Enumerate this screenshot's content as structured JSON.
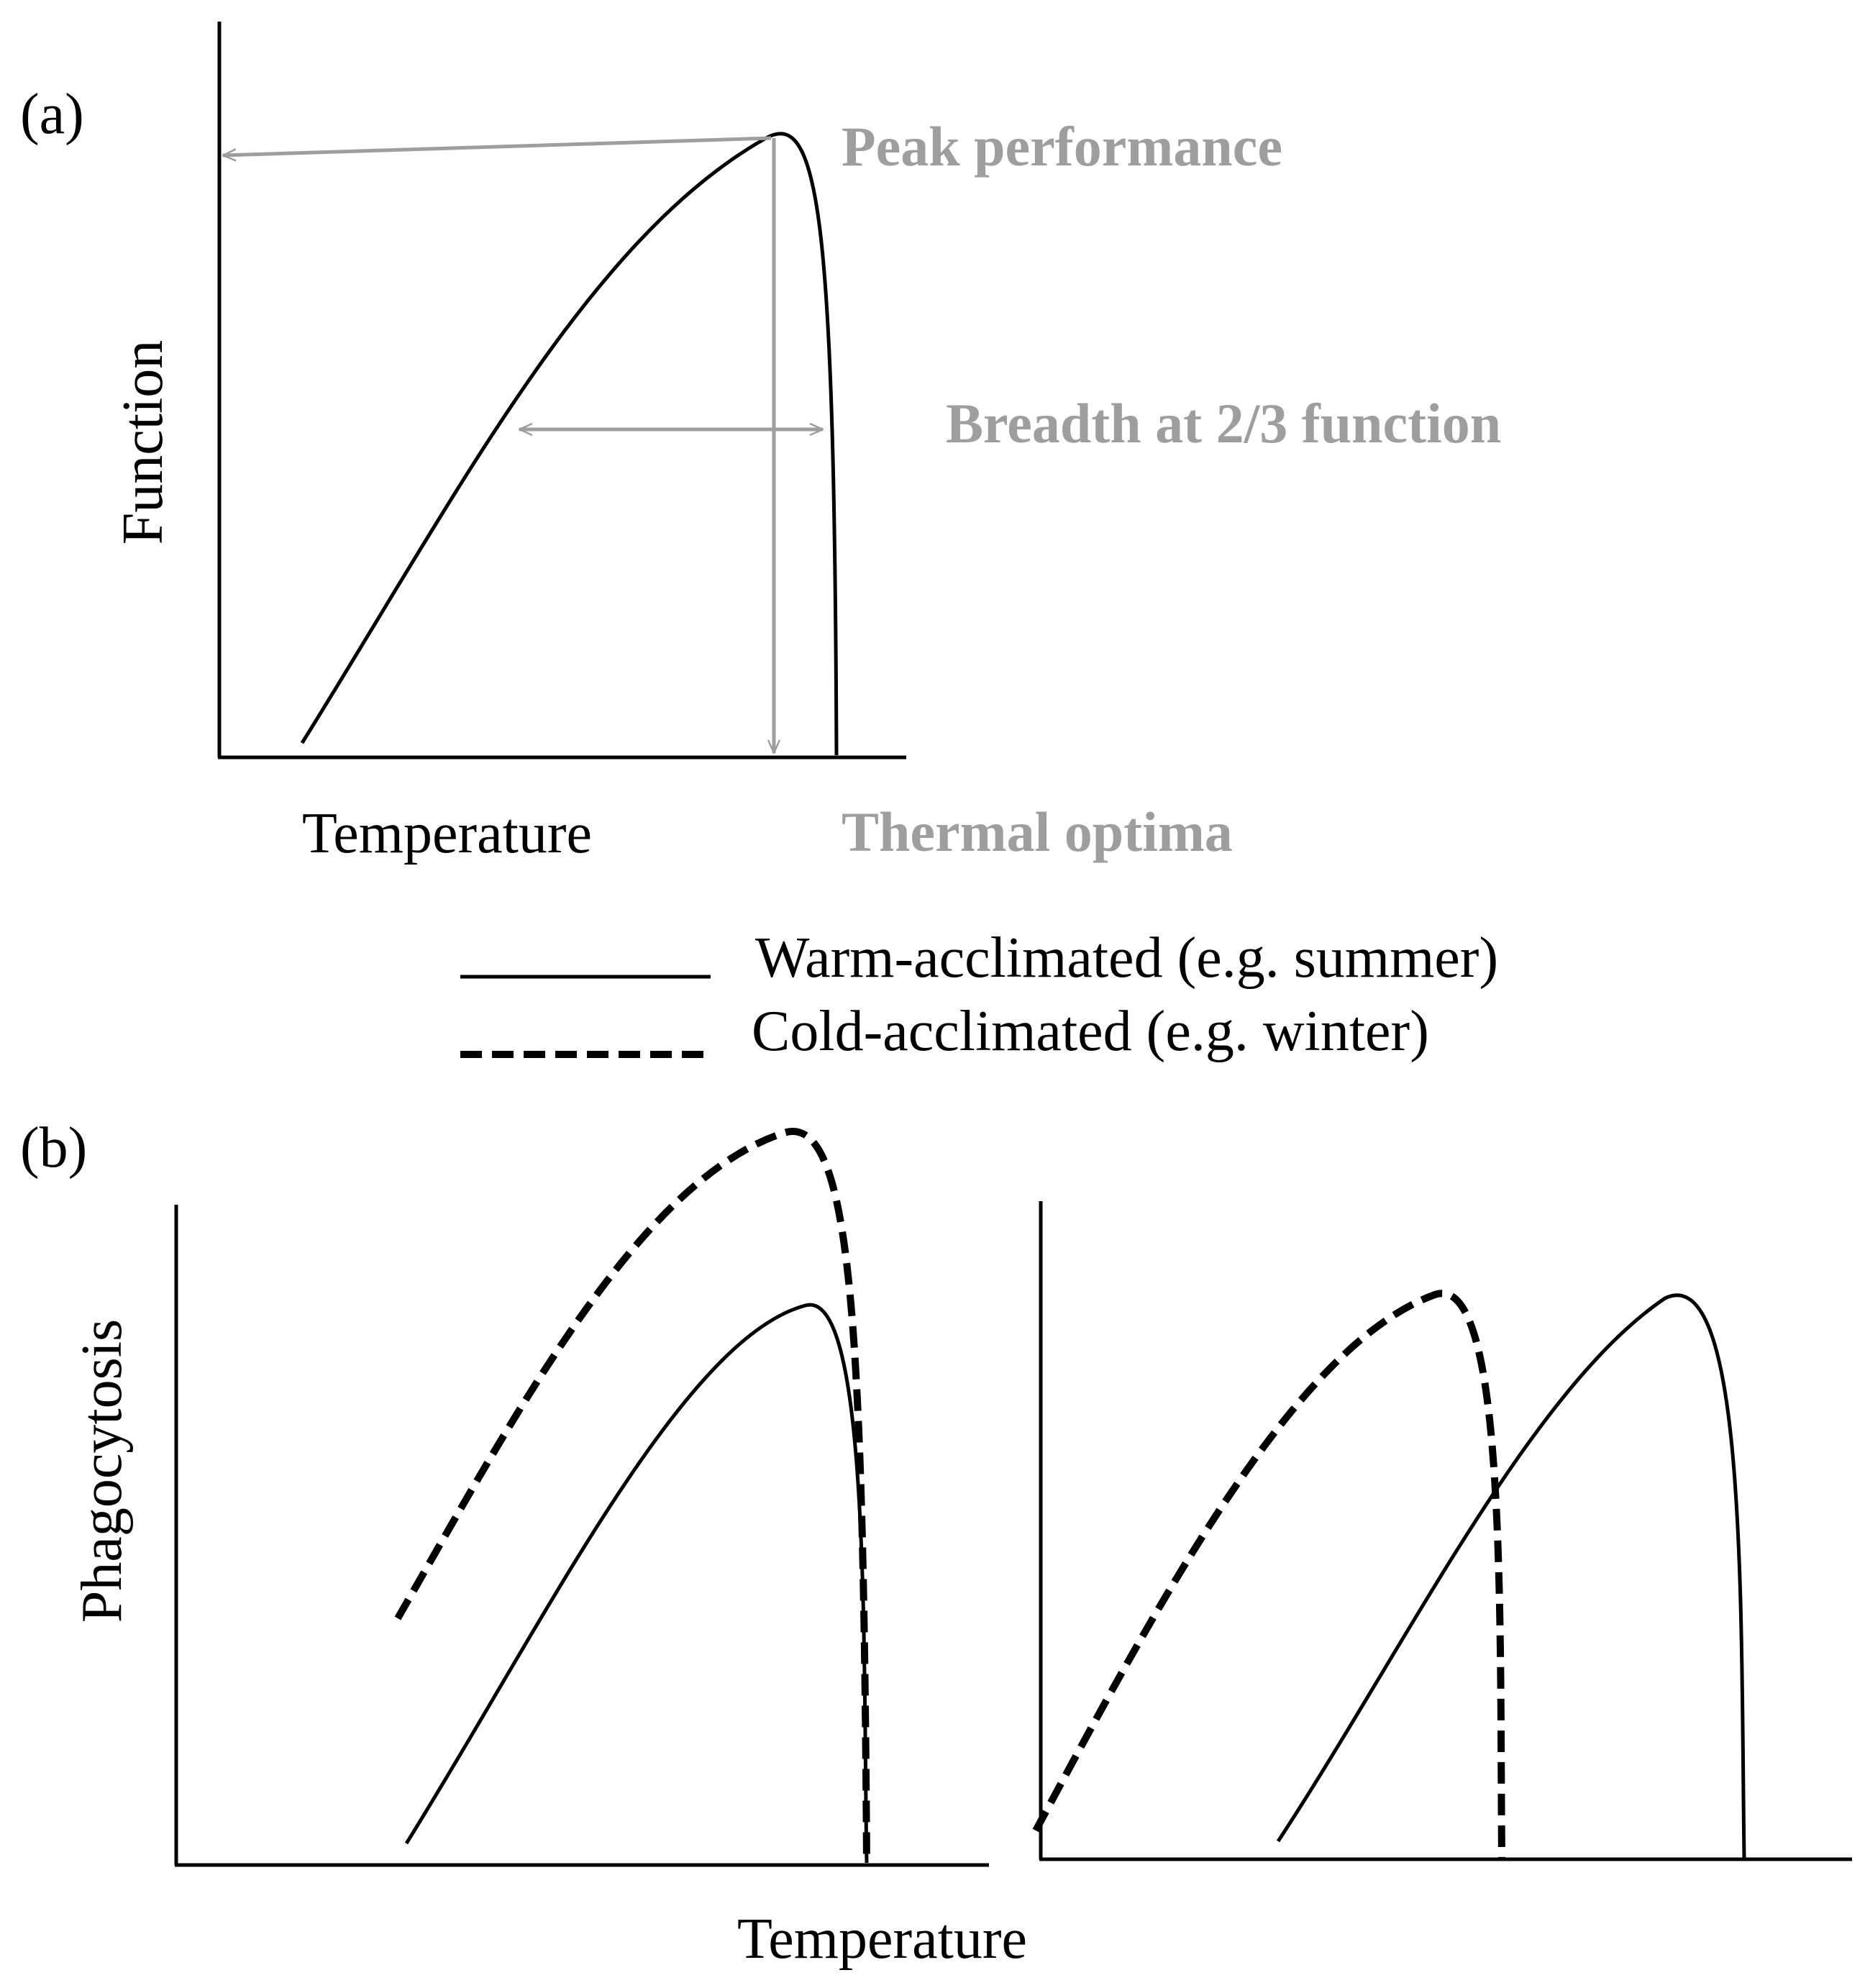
{
  "panel_a": {
    "label": "(a)",
    "y_axis_label": "Function",
    "x_axis_label": "Temperature",
    "annotations": {
      "peak": "Peak performance",
      "breadth": "Breadth at 2/3 function",
      "optima": "Thermal optima"
    }
  },
  "legend": {
    "warm": "Warm-acclimated (e.g. summer)",
    "cold": "Cold-acclimated (e.g. winter)"
  },
  "panel_b": {
    "label": "(b)",
    "y_axis_label": "Phagocytosis",
    "x_axis_label": "Temperature"
  },
  "colors": {
    "annotation": "#9e9e9e",
    "curve": "#000000"
  }
}
